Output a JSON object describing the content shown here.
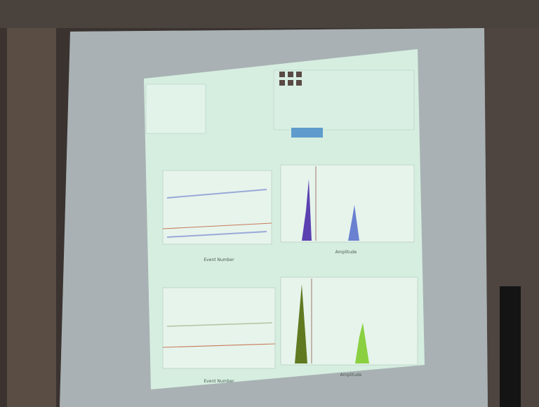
{
  "plots": [
    {
      "x_label": "Event Number"
    },
    {
      "x_label": "Amplitude"
    },
    {
      "x_label": "Event Number"
    },
    {
      "x_label": "Amplitude"
    }
  ]
}
